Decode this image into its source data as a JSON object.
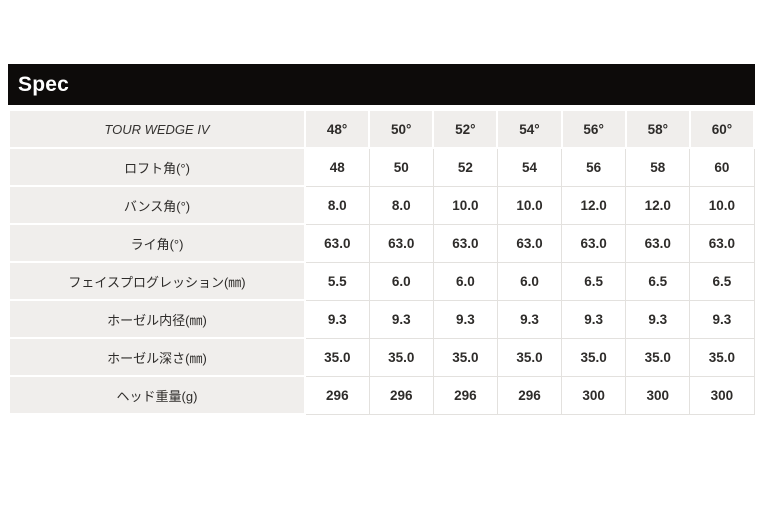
{
  "header": {
    "title": "Spec"
  },
  "table": {
    "model": "TOUR WEDGE IV",
    "columns": [
      "48°",
      "50°",
      "52°",
      "54°",
      "56°",
      "58°",
      "60°"
    ],
    "rows": [
      {
        "label": "ロフト角(°)",
        "values": [
          "48",
          "50",
          "52",
          "54",
          "56",
          "58",
          "60"
        ]
      },
      {
        "label": "バンス角(°)",
        "values": [
          "8.0",
          "8.0",
          "10.0",
          "10.0",
          "12.0",
          "12.0",
          "10.0"
        ]
      },
      {
        "label": "ライ角(°)",
        "values": [
          "63.0",
          "63.0",
          "63.0",
          "63.0",
          "63.0",
          "63.0",
          "63.0"
        ]
      },
      {
        "label": "フェイスプログレッション(㎜)",
        "values": [
          "5.5",
          "6.0",
          "6.0",
          "6.0",
          "6.5",
          "6.5",
          "6.5"
        ]
      },
      {
        "label": "ホーゼル内径(㎜)",
        "values": [
          "9.3",
          "9.3",
          "9.3",
          "9.3",
          "9.3",
          "9.3",
          "9.3"
        ]
      },
      {
        "label": "ホーゼル深さ(㎜)",
        "values": [
          "35.0",
          "35.0",
          "35.0",
          "35.0",
          "35.0",
          "35.0",
          "35.0"
        ]
      },
      {
        "label": "ヘッド重量(g)",
        "values": [
          "296",
          "296",
          "296",
          "296",
          "300",
          "300",
          "300"
        ]
      }
    ]
  },
  "colors": {
    "bar_background": "#0d0b0a",
    "bar_text": "#ffffff",
    "label_cell_background": "#f0eeec",
    "value_cell_background": "#ffffff",
    "grid_line": "#e3e1de",
    "text": "#2e2c2a"
  }
}
